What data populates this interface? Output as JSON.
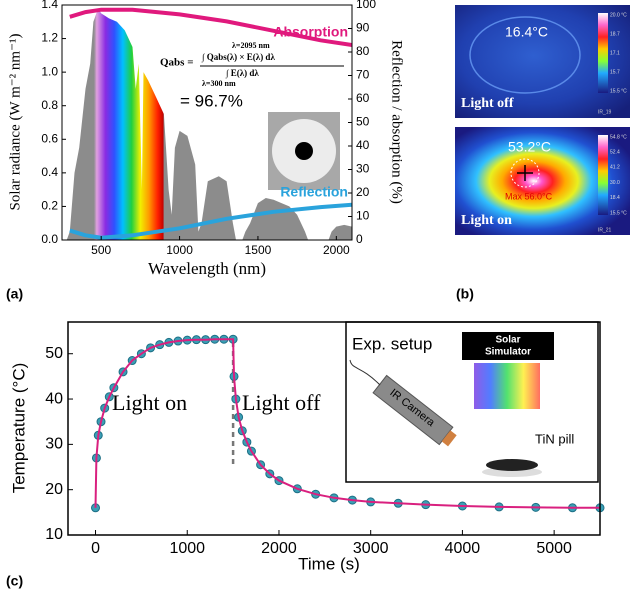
{
  "chart_data": [
    {
      "type": "area",
      "x_label": "Wavelength (nm)",
      "y_label": "Solar radiance (W m⁻² nm⁻¹)",
      "y2_label": "Reflection / absorption (%)",
      "x": [
        280,
        300,
        330,
        360,
        400,
        430,
        450,
        480,
        500,
        550,
        600,
        650,
        700,
        720,
        740,
        760,
        770,
        800,
        850,
        900,
        930,
        950,
        970,
        1000,
        1050,
        1100,
        1120,
        1140,
        1180,
        1250,
        1300,
        1340,
        1360,
        1400,
        1420,
        1450,
        1500,
        1550,
        1600,
        1650,
        1700,
        1750,
        1800,
        1820,
        1950,
        1970,
        2000,
        2050,
        2100
      ],
      "values": [
        0,
        0.05,
        0.4,
        0.55,
        0.9,
        1.05,
        1.3,
        1.38,
        1.35,
        1.32,
        1.3,
        1.25,
        1.15,
        0.9,
        1.05,
        0.3,
        1.0,
        0.95,
        0.85,
        0.75,
        0.3,
        0.15,
        0.55,
        0.65,
        0.62,
        0.45,
        0.05,
        0.1,
        0.35,
        0.38,
        0.35,
        0.1,
        0,
        0,
        0.05,
        0.1,
        0.22,
        0.25,
        0.24,
        0.22,
        0.2,
        0.15,
        0.05,
        0,
        0,
        0.05,
        0.08,
        0.09,
        0.08
      ],
      "color": "#8c8c8c",
      "series": [
        {
          "name": "Absorption",
          "color": "#e0197d",
          "axis": "y2",
          "x": [
            300,
            400,
            500,
            700,
            1000,
            1300,
            1600,
            1900,
            2100
          ],
          "values": [
            95,
            97,
            98,
            98,
            96,
            93,
            89,
            85,
            83
          ]
        },
        {
          "name": "Reflection",
          "color": "#2aa3dc",
          "axis": "y2",
          "x": [
            300,
            400,
            500,
            700,
            1000,
            1300,
            1600,
            1900,
            2100
          ],
          "values": [
            4,
            2,
            1,
            2,
            5,
            9,
            12,
            14,
            15
          ]
        }
      ],
      "xlim": [
        250,
        2100
      ],
      "xticks": [
        500,
        1000,
        1500,
        2000
      ],
      "ylim": [
        0,
        1.4
      ],
      "yticks": [
        {
          "value": 0,
          "label": "0.0"
        },
        0.2,
        0.4,
        0.6,
        0.8,
        {
          "value": 1,
          "label": "1.0"
        },
        1.2,
        1.4
      ],
      "y2lim": [
        0,
        100
      ],
      "y2ticks": [
        0,
        10,
        20,
        30,
        40,
        50,
        60,
        70,
        80,
        90,
        100
      ],
      "formula": {
        "lhs": "Qabs =",
        "upper": "λ=2095 nm",
        "lower": "λ=300 nm",
        "numerator": "∫ Qabs(λ) × E(λ) dλ",
        "denominator": "∫ E(λ) dλ",
        "result": "= 96.7%"
      }
    },
    {
      "type": "scatter",
      "x_label": "Time (s)",
      "y_label": "Temperature (°C)",
      "x": [
        0,
        10,
        30,
        60,
        100,
        150,
        200,
        300,
        400,
        500,
        600,
        700,
        800,
        900,
        1000,
        1100,
        1200,
        1300,
        1400,
        1500,
        1510,
        1530,
        1560,
        1600,
        1650,
        1700,
        1800,
        1900,
        2000,
        2200,
        2400,
        2600,
        2800,
        3000,
        3300,
        3600,
        4000,
        4400,
        4800,
        5200,
        5500
      ],
      "values": [
        16,
        27,
        32,
        35,
        38,
        40.5,
        42.5,
        46,
        48.5,
        50,
        51.3,
        52,
        52.5,
        52.8,
        53,
        53.1,
        53.1,
        53.2,
        53.2,
        53.2,
        45,
        40,
        36,
        33,
        30.5,
        28.5,
        25.5,
        23.5,
        22,
        20.2,
        19,
        18.2,
        17.7,
        17.3,
        17,
        16.7,
        16.4,
        16.2,
        16.1,
        16,
        16
      ],
      "color": "#3a9fb5",
      "line_color": "#d9207f",
      "switch_x": 1500,
      "xlim": [
        -300,
        5500
      ],
      "xticks": [
        0,
        1000,
        2000,
        3000,
        4000,
        5000
      ],
      "ylim": [
        10,
        57
      ],
      "yticks": [
        10,
        20,
        30,
        40,
        50
      ],
      "annotations": [
        "Light on",
        "Light off"
      ],
      "inset": {
        "title": "Exp. setup",
        "simulator": [
          "Solar",
          "Simulator"
        ],
        "camera": "IR Camera",
        "sample": "TiN pill"
      }
    }
  ],
  "thermal_images": [
    {
      "spot": "16.4°C",
      "condition": "Light off",
      "scale": [
        "20.0 °C",
        "18.7",
        "17.1",
        "15.7",
        "15.5 °C"
      ],
      "id": "IR_19"
    },
    {
      "spot": "53.2°C",
      "max": "Max 56.0°C",
      "condition": "Light on",
      "scale": [
        "54.8 °C",
        "52.4",
        "41.2",
        "30.0",
        "18.4",
        "15.5 °C"
      ],
      "id": "IR_21"
    }
  ],
  "panel_labels": [
    "(a)",
    "(b)",
    "(c)"
  ]
}
